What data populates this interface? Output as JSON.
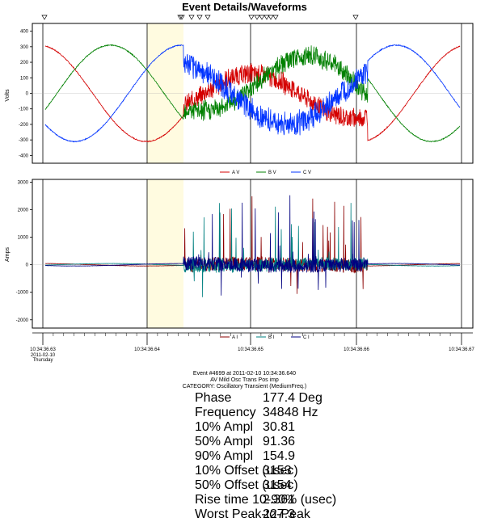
{
  "title": "Event Details/Waveforms",
  "chart_data": [
    {
      "type": "line",
      "ylabel": "Volts",
      "ylim": [
        -450,
        450
      ],
      "yticks": [
        -400,
        -300,
        -200,
        -100,
        0,
        100,
        200,
        300,
        400
      ],
      "series": [
        {
          "name": "A V",
          "color": "#d40000"
        },
        {
          "name": "B V",
          "color": "#008000"
        },
        {
          "name": "C V",
          "color": "#0033ff"
        }
      ]
    },
    {
      "type": "line",
      "ylabel": "Amps",
      "ylim": [
        -2300,
        3100
      ],
      "yticks": [
        -2000,
        -1000,
        0,
        1000,
        2000,
        3000
      ],
      "series": [
        {
          "name": "A I",
          "color": "#8b0000"
        },
        {
          "name": "B I",
          "color": "#008080"
        },
        {
          "name": "C I",
          "color": "#000080"
        }
      ]
    }
  ],
  "x_axis": {
    "ticks": [
      {
        "value": "10:34:36.63",
        "sub": [
          "2011-02-10",
          "Thursday"
        ]
      },
      {
        "value": "10:34:36.64",
        "sub": []
      },
      {
        "value": "10:34:36.65",
        "sub": []
      },
      {
        "value": "10:34:36.66",
        "sub": []
      },
      {
        "value": "10:34:36.67",
        "sub": []
      }
    ]
  },
  "event_info": {
    "line1": "Event #4699 at 2011-02-10 10:34:36.640",
    "line2": "AV Mild Osc Trans Pos imp",
    "line3": "CATEGORY: Oscillatory Transient (MediumFreq.)",
    "stats": [
      {
        "name": "Phase",
        "value": "177.4 Deg"
      },
      {
        "name": "Frequency",
        "value": "34848 Hz"
      },
      {
        "name": "10% Ampl",
        "value": "30.81"
      },
      {
        "name": "50% Ampl",
        "value": "91.36"
      },
      {
        "name": "90% Ampl",
        "value": "154.9"
      },
      {
        "name": "10% Offset (usec)",
        "value": "3153"
      },
      {
        "name": "50% Offset (usec)",
        "value": "3154"
      },
      {
        "name": "Rise time 10-90% (usec)",
        "value": "2.361"
      },
      {
        "name": "Worst Peak-to-Peak",
        "value": "227.3"
      }
    ]
  }
}
